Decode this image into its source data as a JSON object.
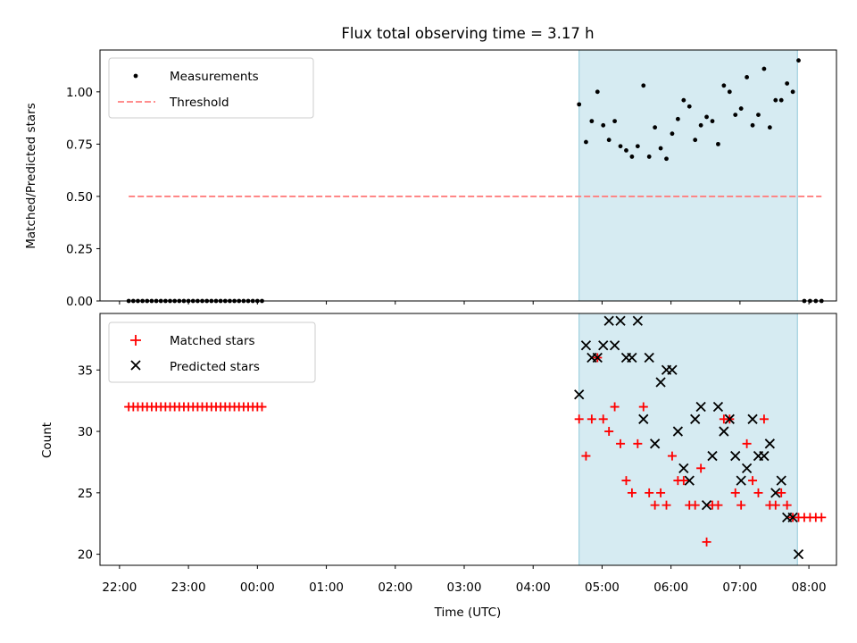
{
  "title": "Flux total observing time = 3.17 h",
  "chart_data": [
    {
      "type": "scatter",
      "panel": "top",
      "ylabel": "Matched/Predicted stars",
      "xlabel": "",
      "ylim": [
        0,
        1.2
      ],
      "y_ticks": [
        0.0,
        0.25,
        0.5,
        0.75,
        1.0
      ],
      "y_tick_labels": [
        "0.00",
        "0.25",
        "0.50",
        "0.75",
        "1.00"
      ],
      "legend_position": "top-left",
      "shaded_region": {
        "x_start": "04:40",
        "x_end": "07:50",
        "color": "#add8e6"
      },
      "series": [
        {
          "name": "Measurements",
          "marker": "dot",
          "color": "#000000",
          "points": [
            [
              "22:08",
              0
            ],
            [
              "22:12",
              0
            ],
            [
              "22:16",
              0
            ],
            [
              "22:20",
              0
            ],
            [
              "22:24",
              0
            ],
            [
              "22:28",
              0
            ],
            [
              "22:32",
              0
            ],
            [
              "22:36",
              0
            ],
            [
              "22:40",
              0
            ],
            [
              "22:44",
              0
            ],
            [
              "22:48",
              0
            ],
            [
              "22:52",
              0
            ],
            [
              "22:56",
              0
            ],
            [
              "23:00",
              0
            ],
            [
              "23:04",
              0
            ],
            [
              "23:08",
              0
            ],
            [
              "23:12",
              0
            ],
            [
              "23:16",
              0
            ],
            [
              "23:20",
              0
            ],
            [
              "23:24",
              0
            ],
            [
              "23:28",
              0
            ],
            [
              "23:32",
              0
            ],
            [
              "23:36",
              0
            ],
            [
              "23:40",
              0
            ],
            [
              "23:44",
              0
            ],
            [
              "23:48",
              0
            ],
            [
              "23:52",
              0
            ],
            [
              "23:56",
              0
            ],
            [
              "00:00",
              0
            ],
            [
              "00:04",
              0
            ],
            [
              "04:40",
              0.94
            ],
            [
              "04:46",
              0.76
            ],
            [
              "04:51",
              0.86
            ],
            [
              "04:56",
              1.0
            ],
            [
              "05:01",
              0.84
            ],
            [
              "05:06",
              0.77
            ],
            [
              "05:11",
              0.86
            ],
            [
              "05:16",
              0.74
            ],
            [
              "05:21",
              0.72
            ],
            [
              "05:26",
              0.69
            ],
            [
              "05:31",
              0.74
            ],
            [
              "05:36",
              1.03
            ],
            [
              "05:41",
              0.69
            ],
            [
              "05:46",
              0.83
            ],
            [
              "05:51",
              0.73
            ],
            [
              "05:56",
              0.68
            ],
            [
              "06:01",
              0.8
            ],
            [
              "06:06",
              0.87
            ],
            [
              "06:11",
              0.96
            ],
            [
              "06:16",
              0.93
            ],
            [
              "06:21",
              0.77
            ],
            [
              "06:26",
              0.84
            ],
            [
              "06:31",
              0.88
            ],
            [
              "06:36",
              0.86
            ],
            [
              "06:41",
              0.75
            ],
            [
              "06:46",
              1.03
            ],
            [
              "06:51",
              1.0
            ],
            [
              "06:56",
              0.89
            ],
            [
              "07:01",
              0.92
            ],
            [
              "07:06",
              1.07
            ],
            [
              "07:11",
              0.84
            ],
            [
              "07:16",
              0.89
            ],
            [
              "07:21",
              1.11
            ],
            [
              "07:26",
              0.83
            ],
            [
              "07:31",
              0.96
            ],
            [
              "07:36",
              0.96
            ],
            [
              "07:41",
              1.04
            ],
            [
              "07:46",
              1.0
            ],
            [
              "07:51",
              1.15
            ],
            [
              "07:56",
              0
            ],
            [
              "08:01",
              0
            ],
            [
              "08:06",
              0
            ],
            [
              "08:11",
              0
            ]
          ]
        },
        {
          "name": "Threshold",
          "marker": "dashed-line",
          "color": "#ff7f7f",
          "points": [
            [
              "22:08",
              0.5
            ],
            [
              "08:11",
              0.5
            ]
          ]
        }
      ]
    },
    {
      "type": "scatter",
      "panel": "bottom",
      "xlabel": "Time (UTC)",
      "ylabel": "Count",
      "ylim": [
        19.1,
        39.6
      ],
      "y_ticks": [
        20,
        25,
        30,
        35
      ],
      "y_tick_labels": [
        "20",
        "25",
        "30",
        "35"
      ],
      "x_ticks": [
        "22:00",
        "23:00",
        "00:00",
        "01:00",
        "02:00",
        "03:00",
        "04:00",
        "05:00",
        "06:00",
        "07:00",
        "08:00"
      ],
      "x_tick_labels": [
        "22:00",
        "23:00",
        "00:00",
        "01:00",
        "02:00",
        "03:00",
        "04:00",
        "05:00",
        "06:00",
        "07:00",
        "08:00"
      ],
      "legend_position": "top-left",
      "shaded_region": {
        "x_start": "04:40",
        "x_end": "07:50",
        "color": "#add8e6"
      },
      "series": [
        {
          "name": "Matched stars",
          "marker": "plus",
          "color": "#ff0000",
          "points": [
            [
              "22:08",
              32
            ],
            [
              "22:12",
              32
            ],
            [
              "22:16",
              32
            ],
            [
              "22:20",
              32
            ],
            [
              "22:24",
              32
            ],
            [
              "22:28",
              32
            ],
            [
              "22:32",
              32
            ],
            [
              "22:36",
              32
            ],
            [
              "22:40",
              32
            ],
            [
              "22:44",
              32
            ],
            [
              "22:48",
              32
            ],
            [
              "22:52",
              32
            ],
            [
              "22:56",
              32
            ],
            [
              "23:00",
              32
            ],
            [
              "23:04",
              32
            ],
            [
              "23:08",
              32
            ],
            [
              "23:12",
              32
            ],
            [
              "23:16",
              32
            ],
            [
              "23:20",
              32
            ],
            [
              "23:24",
              32
            ],
            [
              "23:28",
              32
            ],
            [
              "23:32",
              32
            ],
            [
              "23:36",
              32
            ],
            [
              "23:40",
              32
            ],
            [
              "23:44",
              32
            ],
            [
              "23:48",
              32
            ],
            [
              "23:52",
              32
            ],
            [
              "23:56",
              32
            ],
            [
              "00:00",
              32
            ],
            [
              "00:04",
              32
            ],
            [
              "04:40",
              31
            ],
            [
              "04:46",
              28
            ],
            [
              "04:51",
              31
            ],
            [
              "04:56",
              36
            ],
            [
              "05:01",
              31
            ],
            [
              "05:06",
              30
            ],
            [
              "05:11",
              32
            ],
            [
              "05:16",
              29
            ],
            [
              "05:21",
              26
            ],
            [
              "05:26",
              25
            ],
            [
              "05:31",
              29
            ],
            [
              "05:36",
              32
            ],
            [
              "05:41",
              25
            ],
            [
              "05:46",
              24
            ],
            [
              "05:51",
              25
            ],
            [
              "05:56",
              24
            ],
            [
              "06:01",
              28
            ],
            [
              "06:06",
              26
            ],
            [
              "06:11",
              26
            ],
            [
              "06:16",
              24
            ],
            [
              "06:21",
              24
            ],
            [
              "06:26",
              27
            ],
            [
              "06:31",
              21
            ],
            [
              "06:36",
              24
            ],
            [
              "06:41",
              24
            ],
            [
              "06:46",
              31
            ],
            [
              "06:51",
              31
            ],
            [
              "06:56",
              25
            ],
            [
              "07:01",
              24
            ],
            [
              "07:06",
              29
            ],
            [
              "07:11",
              26
            ],
            [
              "07:16",
              25
            ],
            [
              "07:21",
              31
            ],
            [
              "07:26",
              24
            ],
            [
              "07:31",
              24
            ],
            [
              "07:36",
              25
            ],
            [
              "07:41",
              24
            ],
            [
              "07:46",
              23
            ],
            [
              "07:51",
              23
            ],
            [
              "07:56",
              23
            ],
            [
              "08:01",
              23
            ],
            [
              "08:06",
              23
            ],
            [
              "08:11",
              23
            ]
          ]
        },
        {
          "name": "Predicted stars",
          "marker": "x",
          "color": "#000000",
          "points": [
            [
              "04:40",
              33
            ],
            [
              "04:46",
              37
            ],
            [
              "04:51",
              36
            ],
            [
              "04:56",
              36
            ],
            [
              "05:01",
              37
            ],
            [
              "05:06",
              39
            ],
            [
              "05:11",
              37
            ],
            [
              "05:16",
              39
            ],
            [
              "05:21",
              36
            ],
            [
              "05:26",
              36
            ],
            [
              "05:31",
              39
            ],
            [
              "05:36",
              31
            ],
            [
              "05:41",
              36
            ],
            [
              "05:46",
              29
            ],
            [
              "05:51",
              34
            ],
            [
              "05:56",
              35
            ],
            [
              "06:01",
              35
            ],
            [
              "06:06",
              30
            ],
            [
              "06:11",
              27
            ],
            [
              "06:16",
              26
            ],
            [
              "06:21",
              31
            ],
            [
              "06:26",
              32
            ],
            [
              "06:31",
              24
            ],
            [
              "06:36",
              28
            ],
            [
              "06:41",
              32
            ],
            [
              "06:46",
              30
            ],
            [
              "06:51",
              31
            ],
            [
              "06:56",
              28
            ],
            [
              "07:01",
              26
            ],
            [
              "07:06",
              27
            ],
            [
              "07:11",
              31
            ],
            [
              "07:16",
              28
            ],
            [
              "07:21",
              28
            ],
            [
              "07:26",
              29
            ],
            [
              "07:31",
              25
            ],
            [
              "07:36",
              26
            ],
            [
              "07:41",
              23
            ],
            [
              "07:46",
              23
            ],
            [
              "07:51",
              20
            ]
          ]
        }
      ]
    }
  ]
}
